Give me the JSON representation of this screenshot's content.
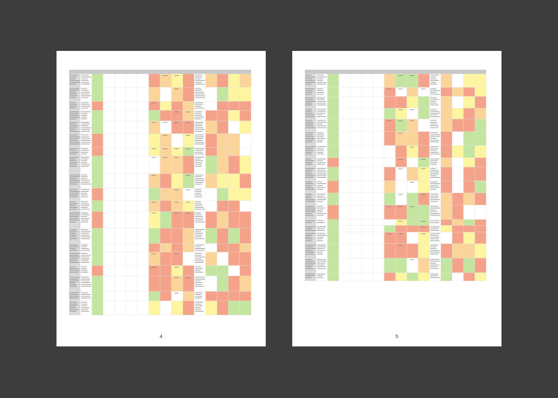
{
  "pages": [
    {
      "page_number": "4"
    },
    {
      "page_number": "5"
    }
  ]
}
